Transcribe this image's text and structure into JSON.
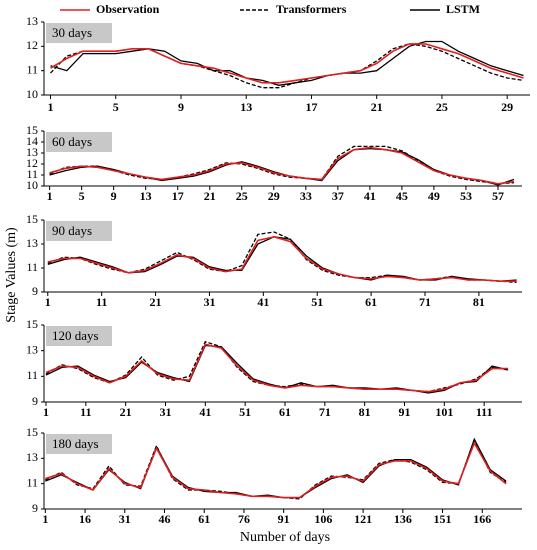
{
  "ylabel": "Stage Values (m)",
  "xlabel": "Number of days",
  "chart_data": [
    {
      "type": "line",
      "title": "30 days",
      "x": [
        1,
        2,
        3,
        4,
        5,
        6,
        7,
        8,
        9,
        10,
        11,
        12,
        13,
        14,
        15,
        16,
        17,
        18,
        19,
        20,
        21,
        22,
        23,
        24,
        25,
        26,
        27,
        28,
        29,
        30
      ],
      "series": [
        {
          "name": "Observation",
          "color": "#e02020",
          "style": "solid",
          "values": [
            11.1,
            11.5,
            11.8,
            11.8,
            11.8,
            11.9,
            11.9,
            11.6,
            11.3,
            11.2,
            11.1,
            10.9,
            10.7,
            10.5,
            10.5,
            10.6,
            10.7,
            10.8,
            10.9,
            11.0,
            11.3,
            11.8,
            12.1,
            12.1,
            11.9,
            11.7,
            11.4,
            11.1,
            10.9,
            10.7
          ]
        },
        {
          "name": "Transformers",
          "color": "#000000",
          "style": "dashed",
          "values": [
            10.9,
            11.6,
            11.8,
            11.8,
            11.8,
            11.9,
            11.9,
            11.6,
            11.3,
            11.2,
            11.0,
            10.8,
            10.5,
            10.3,
            10.3,
            10.5,
            10.7,
            10.8,
            10.9,
            11.0,
            11.4,
            11.9,
            12.1,
            12.0,
            11.8,
            11.5,
            11.2,
            10.9,
            10.7,
            10.6
          ]
        },
        {
          "name": "LSTM",
          "color": "#000000",
          "style": "solid",
          "values": [
            11.2,
            11.0,
            11.7,
            11.7,
            11.7,
            11.8,
            11.9,
            11.8,
            11.4,
            11.3,
            11.0,
            11.0,
            10.7,
            10.6,
            10.4,
            10.5,
            10.6,
            10.8,
            10.9,
            10.9,
            11.0,
            11.5,
            12.0,
            12.2,
            12.2,
            11.8,
            11.5,
            11.2,
            11.0,
            10.8
          ]
        }
      ],
      "xlim": [
        0.6,
        30.4
      ],
      "ylim": [
        10,
        13
      ],
      "xticks": [
        1,
        5,
        9,
        13,
        17,
        21,
        25,
        29
      ],
      "yticks": [
        10,
        11,
        12,
        13
      ]
    },
    {
      "type": "line",
      "title": "60 days",
      "x": [
        1,
        3,
        5,
        7,
        9,
        11,
        13,
        15,
        17,
        19,
        21,
        23,
        25,
        27,
        29,
        31,
        33,
        35,
        37,
        39,
        41,
        43,
        45,
        47,
        49,
        51,
        53,
        55,
        57,
        59
      ],
      "series": [
        {
          "color": "#e02020",
          "style": "solid",
          "values": [
            11.2,
            11.6,
            11.8,
            11.7,
            11.4,
            11.1,
            10.8,
            10.6,
            10.8,
            11.0,
            11.4,
            12.0,
            12.1,
            11.7,
            11.2,
            10.9,
            10.7,
            10.6,
            12.5,
            13.3,
            13.5,
            13.3,
            13.0,
            12.2,
            11.4,
            11.0,
            10.7,
            10.5,
            10.2,
            10.4
          ]
        },
        {
          "color": "#000000",
          "style": "dashed",
          "values": [
            11.1,
            11.7,
            11.8,
            11.8,
            11.4,
            11.0,
            10.7,
            10.6,
            10.8,
            11.1,
            11.5,
            12.1,
            12.0,
            11.6,
            11.1,
            10.8,
            10.7,
            10.6,
            12.7,
            13.6,
            13.6,
            13.6,
            13.2,
            12.3,
            11.4,
            10.9,
            10.6,
            10.4,
            10.2,
            10.3
          ]
        },
        {
          "color": "#000000",
          "style": "solid",
          "values": [
            11.0,
            11.4,
            11.7,
            11.8,
            11.5,
            11.1,
            10.8,
            10.5,
            10.7,
            10.9,
            11.3,
            11.9,
            12.2,
            11.8,
            11.3,
            10.9,
            10.7,
            10.5,
            12.3,
            13.3,
            13.4,
            13.3,
            13.1,
            12.4,
            11.5,
            11.0,
            10.7,
            10.5,
            10.1,
            10.6
          ]
        }
      ],
      "xlim": [
        0.3,
        60
      ],
      "ylim": [
        10,
        15
      ],
      "xticks": [
        1,
        5,
        9,
        13,
        17,
        21,
        25,
        29,
        33,
        37,
        41,
        45,
        49,
        53,
        57
      ],
      "yticks": [
        10,
        11,
        12,
        13,
        14,
        15
      ]
    },
    {
      "type": "line",
      "title": "90 days",
      "x": [
        1,
        4,
        7,
        10,
        13,
        16,
        19,
        22,
        25,
        28,
        31,
        34,
        37,
        40,
        43,
        46,
        49,
        52,
        55,
        58,
        61,
        64,
        67,
        70,
        73,
        76,
        79,
        82,
        85,
        88
      ],
      "series": [
        {
          "color": "#e02020",
          "style": "solid",
          "values": [
            11.5,
            11.8,
            11.8,
            11.4,
            11.0,
            10.6,
            10.8,
            11.4,
            12.1,
            11.8,
            11.0,
            10.7,
            10.9,
            13.3,
            13.6,
            13.2,
            11.8,
            10.9,
            10.5,
            10.2,
            10.1,
            10.3,
            10.2,
            10.0,
            10.1,
            10.2,
            10.0,
            10.0,
            9.9,
            9.9
          ]
        },
        {
          "color": "#000000",
          "style": "dashed",
          "values": [
            11.4,
            11.9,
            11.8,
            11.3,
            10.9,
            10.6,
            10.9,
            11.6,
            12.3,
            11.7,
            10.9,
            10.7,
            11.2,
            13.8,
            14.0,
            13.4,
            11.7,
            10.8,
            10.4,
            10.2,
            10.2,
            10.4,
            10.2,
            10.0,
            10.1,
            10.3,
            10.0,
            10.0,
            9.9,
            9.8
          ]
        },
        {
          "color": "#000000",
          "style": "solid",
          "values": [
            11.3,
            11.7,
            11.9,
            11.5,
            11.1,
            10.6,
            10.7,
            11.3,
            12.0,
            11.9,
            11.1,
            10.8,
            10.8,
            13.0,
            13.6,
            13.4,
            12.0,
            11.0,
            10.5,
            10.2,
            10.0,
            10.4,
            10.3,
            10.0,
            10.0,
            10.3,
            10.1,
            10.0,
            9.9,
            10.0
          ]
        }
      ],
      "xlim": [
        0.3,
        89
      ],
      "ylim": [
        9,
        15
      ],
      "xticks": [
        1,
        11,
        21,
        31,
        41,
        51,
        61,
        71,
        81
      ],
      "yticks": [
        9,
        11,
        13,
        15
      ]
    },
    {
      "type": "line",
      "title": "120 days",
      "x": [
        1,
        5,
        9,
        13,
        17,
        21,
        25,
        29,
        33,
        37,
        41,
        45,
        49,
        53,
        57,
        61,
        65,
        69,
        73,
        77,
        81,
        85,
        89,
        93,
        97,
        101,
        105,
        109,
        113,
        117
      ],
      "series": [
        {
          "color": "#e02020",
          "style": "solid",
          "values": [
            11.3,
            11.8,
            11.7,
            11.0,
            10.5,
            11.0,
            12.2,
            11.2,
            10.8,
            10.7,
            13.5,
            13.2,
            11.8,
            10.7,
            10.3,
            10.1,
            10.3,
            10.2,
            10.2,
            10.1,
            10.0,
            10.0,
            10.0,
            9.9,
            9.8,
            10.0,
            10.5,
            10.7,
            11.6,
            11.6
          ]
        },
        {
          "color": "#000000",
          "style": "dashed",
          "values": [
            11.2,
            11.9,
            11.6,
            10.9,
            10.5,
            11.1,
            12.5,
            11.1,
            10.7,
            11.0,
            13.7,
            13.3,
            11.7,
            10.6,
            10.3,
            10.2,
            10.4,
            10.2,
            10.2,
            10.1,
            10.0,
            10.0,
            10.0,
            9.9,
            9.8,
            10.1,
            10.4,
            10.8,
            11.7,
            11.5
          ]
        },
        {
          "color": "#000000",
          "style": "solid",
          "values": [
            11.1,
            11.7,
            11.8,
            11.1,
            10.6,
            10.9,
            12.1,
            11.3,
            10.9,
            10.6,
            13.4,
            13.3,
            12.0,
            10.8,
            10.4,
            10.1,
            10.5,
            10.2,
            10.3,
            10.1,
            10.1,
            10.0,
            10.1,
            9.9,
            9.7,
            9.9,
            10.5,
            10.6,
            11.8,
            11.5
          ]
        }
      ],
      "xlim": [
        0.5,
        120.5
      ],
      "ylim": [
        9,
        15
      ],
      "xticks": [
        1,
        11,
        21,
        31,
        41,
        51,
        61,
        71,
        81,
        91,
        101,
        111
      ],
      "yticks": [
        9,
        11,
        13,
        15
      ]
    },
    {
      "type": "line",
      "title": "180 days",
      "x": [
        1,
        7,
        13,
        19,
        25,
        31,
        37,
        43,
        49,
        55,
        61,
        67,
        73,
        79,
        85,
        91,
        97,
        103,
        109,
        115,
        121,
        127,
        133,
        139,
        145,
        151,
        157,
        163,
        169,
        175
      ],
      "series": [
        {
          "color": "#e02020",
          "style": "solid",
          "values": [
            11.4,
            11.8,
            11.0,
            10.5,
            12.2,
            11.0,
            10.7,
            13.8,
            11.5,
            10.6,
            10.5,
            10.3,
            10.2,
            10.0,
            10.0,
            9.9,
            9.9,
            10.8,
            11.5,
            11.6,
            11.2,
            12.5,
            12.8,
            12.8,
            12.2,
            11.2,
            11.0,
            14.2,
            12.0,
            11.0
          ]
        },
        {
          "color": "#000000",
          "style": "dashed",
          "values": [
            11.3,
            11.9,
            10.9,
            10.6,
            12.4,
            10.9,
            10.8,
            14.0,
            11.4,
            10.5,
            10.5,
            10.4,
            10.2,
            10.0,
            10.0,
            9.9,
            9.8,
            10.9,
            11.6,
            11.5,
            11.3,
            12.6,
            12.9,
            12.7,
            12.1,
            11.1,
            11.0,
            14.4,
            11.9,
            11.1
          ]
        },
        {
          "color": "#000000",
          "style": "solid",
          "values": [
            11.2,
            11.7,
            11.1,
            10.5,
            12.1,
            11.1,
            10.6,
            13.9,
            11.6,
            10.7,
            10.4,
            10.3,
            10.3,
            10.0,
            10.1,
            9.9,
            9.9,
            10.7,
            11.4,
            11.7,
            11.1,
            12.4,
            12.9,
            12.9,
            12.3,
            11.3,
            10.9,
            14.5,
            12.1,
            11.2
          ]
        }
      ],
      "xlim": [
        0.5,
        181
      ],
      "ylim": [
        9,
        15
      ],
      "xticks": [
        1,
        16,
        31,
        46,
        61,
        76,
        91,
        106,
        121,
        136,
        151,
        166
      ],
      "yticks": [
        9,
        11,
        13,
        15
      ]
    }
  ]
}
